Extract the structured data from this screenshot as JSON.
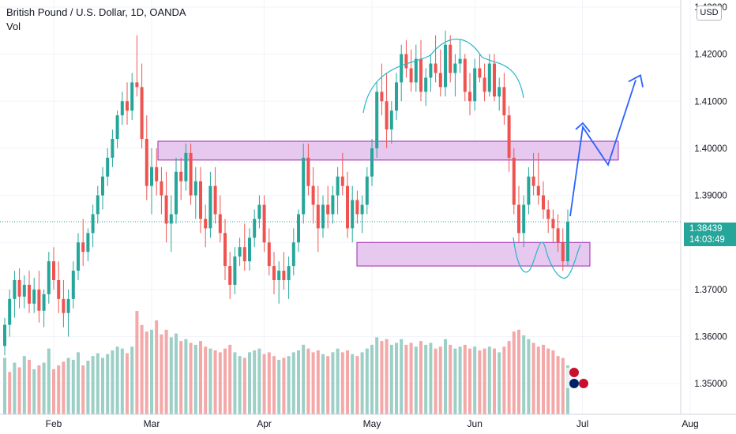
{
  "header": {
    "title": "British Pound / U.S. Dollar, 1D, OANDA",
    "volume_label": "Vol",
    "currency_button": "USD"
  },
  "price_tag": {
    "price": "1.38439",
    "countdown": "14:03:49"
  },
  "colors": {
    "up": "#26a69a",
    "down": "#ef5350",
    "vol_up": "#9ccfc6",
    "vol_down": "#f4a8a8",
    "zone_fill": "#e7c8ee",
    "zone_stroke": "#9c27b0",
    "pattern_line": "#29b6c8",
    "arrow": "#2962ff",
    "current_price_line": "#26a69a"
  },
  "chart_data": {
    "type": "candlestick",
    "title": "British Pound / U.S. Dollar, 1D, OANDA",
    "ylabel": "USD",
    "ylim": [
      1.3435,
      1.4315
    ],
    "y_ticks": [
      "1.35000",
      "1.36000",
      "1.37000",
      "1.38000",
      "1.39000",
      "1.40000",
      "1.41000",
      "1.42000",
      "1.43000"
    ],
    "x_ticks": [
      "Feb",
      "Mar",
      "Apr",
      "May",
      "Jun",
      "Jul",
      "Aug"
    ],
    "current_price": 1.38439,
    "start_date": "2021-01-18",
    "candles": [
      [
        1.358,
        1.364,
        1.356,
        1.3625
      ],
      [
        1.3625,
        1.37,
        1.36,
        1.368
      ],
      [
        1.368,
        1.374,
        1.364,
        1.372
      ],
      [
        1.372,
        1.3745,
        1.366,
        1.3685
      ],
      [
        1.3685,
        1.373,
        1.366,
        1.371
      ],
      [
        1.371,
        1.374,
        1.365,
        1.367
      ],
      [
        1.367,
        1.3725,
        1.365,
        1.37
      ],
      [
        1.37,
        1.374,
        1.363,
        1.3655
      ],
      [
        1.3655,
        1.37,
        1.362,
        1.369
      ],
      [
        1.369,
        1.378,
        1.367,
        1.376
      ],
      [
        1.376,
        1.379,
        1.37,
        1.372
      ],
      [
        1.372,
        1.376,
        1.365,
        1.368
      ],
      [
        1.368,
        1.372,
        1.362,
        1.365
      ],
      [
        1.365,
        1.37,
        1.36,
        1.368
      ],
      [
        1.368,
        1.376,
        1.366,
        1.374
      ],
      [
        1.374,
        1.382,
        1.372,
        1.38
      ],
      [
        1.38,
        1.385,
        1.375,
        1.378
      ],
      [
        1.378,
        1.383,
        1.376,
        1.382
      ],
      [
        1.382,
        1.388,
        1.379,
        1.386
      ],
      [
        1.386,
        1.392,
        1.384,
        1.39
      ],
      [
        1.39,
        1.396,
        1.387,
        1.394
      ],
      [
        1.394,
        1.4,
        1.392,
        1.398
      ],
      [
        1.398,
        1.404,
        1.396,
        1.402
      ],
      [
        1.402,
        1.408,
        1.4,
        1.407
      ],
      [
        1.407,
        1.412,
        1.405,
        1.41
      ],
      [
        1.41,
        1.414,
        1.405,
        1.408
      ],
      [
        1.408,
        1.416,
        1.406,
        1.414
      ],
      [
        1.414,
        1.424,
        1.411,
        1.413
      ],
      [
        1.413,
        1.418,
        1.4,
        1.402
      ],
      [
        1.402,
        1.407,
        1.389,
        1.392
      ],
      [
        1.392,
        1.4,
        1.386,
        1.396
      ],
      [
        1.396,
        1.4,
        1.39,
        1.393
      ],
      [
        1.393,
        1.396,
        1.386,
        1.39
      ],
      [
        1.39,
        1.395,
        1.38,
        1.384
      ],
      [
        1.384,
        1.39,
        1.378,
        1.386
      ],
      [
        1.386,
        1.398,
        1.384,
        1.395
      ],
      [
        1.395,
        1.398,
        1.389,
        1.393
      ],
      [
        1.393,
        1.401,
        1.391,
        1.399
      ],
      [
        1.399,
        1.401,
        1.388,
        1.39
      ],
      [
        1.39,
        1.396,
        1.385,
        1.393
      ],
      [
        1.393,
        1.396,
        1.382,
        1.385
      ],
      [
        1.385,
        1.388,
        1.379,
        1.383
      ],
      [
        1.383,
        1.395,
        1.381,
        1.392
      ],
      [
        1.392,
        1.396,
        1.384,
        1.386
      ],
      [
        1.386,
        1.39,
        1.38,
        1.382
      ],
      [
        1.382,
        1.385,
        1.372,
        1.375
      ],
      [
        1.375,
        1.378,
        1.368,
        1.371
      ],
      [
        1.371,
        1.379,
        1.369,
        1.377
      ],
      [
        1.377,
        1.381,
        1.375,
        1.379
      ],
      [
        1.379,
        1.384,
        1.374,
        1.376
      ],
      [
        1.376,
        1.383,
        1.374,
        1.381
      ],
      [
        1.381,
        1.387,
        1.379,
        1.385
      ],
      [
        1.385,
        1.39,
        1.383,
        1.388
      ],
      [
        1.388,
        1.39,
        1.378,
        1.38
      ],
      [
        1.38,
        1.383,
        1.373,
        1.375
      ],
      [
        1.375,
        1.378,
        1.369,
        1.372
      ],
      [
        1.372,
        1.376,
        1.367,
        1.374
      ],
      [
        1.374,
        1.378,
        1.37,
        1.372
      ],
      [
        1.372,
        1.377,
        1.368,
        1.375
      ],
      [
        1.375,
        1.383,
        1.373,
        1.38
      ],
      [
        1.38,
        1.387,
        1.378,
        1.386
      ],
      [
        1.386,
        1.401,
        1.384,
        1.398
      ],
      [
        1.398,
        1.401,
        1.39,
        1.392
      ],
      [
        1.392,
        1.396,
        1.384,
        1.388
      ],
      [
        1.388,
        1.392,
        1.378,
        1.383
      ],
      [
        1.383,
        1.39,
        1.381,
        1.388
      ],
      [
        1.388,
        1.392,
        1.383,
        1.386
      ],
      [
        1.386,
        1.392,
        1.384,
        1.39
      ],
      [
        1.39,
        1.396,
        1.386,
        1.394
      ],
      [
        1.394,
        1.399,
        1.39,
        1.392
      ],
      [
        1.392,
        1.395,
        1.381,
        1.383
      ],
      [
        1.383,
        1.392,
        1.38,
        1.389
      ],
      [
        1.389,
        1.391,
        1.384,
        1.386
      ],
      [
        1.386,
        1.39,
        1.382,
        1.388
      ],
      [
        1.388,
        1.396,
        1.386,
        1.394
      ],
      [
        1.394,
        1.402,
        1.392,
        1.4
      ],
      [
        1.4,
        1.414,
        1.398,
        1.412
      ],
      [
        1.412,
        1.418,
        1.407,
        1.41
      ],
      [
        1.41,
        1.416,
        1.4,
        1.404
      ],
      [
        1.404,
        1.41,
        1.401,
        1.408
      ],
      [
        1.408,
        1.416,
        1.406,
        1.414
      ],
      [
        1.414,
        1.422,
        1.41,
        1.42
      ],
      [
        1.42,
        1.423,
        1.415,
        1.417
      ],
      [
        1.417,
        1.421,
        1.412,
        1.414
      ],
      [
        1.414,
        1.422,
        1.412,
        1.419
      ],
      [
        1.419,
        1.423,
        1.41,
        1.412
      ],
      [
        1.412,
        1.417,
        1.409,
        1.415
      ],
      [
        1.415,
        1.42,
        1.412,
        1.418
      ],
      [
        1.418,
        1.424,
        1.414,
        1.416
      ],
      [
        1.416,
        1.421,
        1.411,
        1.413
      ],
      [
        1.413,
        1.425,
        1.411,
        1.422
      ],
      [
        1.422,
        1.424,
        1.414,
        1.416
      ],
      [
        1.416,
        1.42,
        1.411,
        1.418
      ],
      [
        1.418,
        1.423,
        1.416,
        1.419
      ],
      [
        1.419,
        1.42,
        1.41,
        1.412
      ],
      [
        1.412,
        1.416,
        1.407,
        1.41
      ],
      [
        1.41,
        1.419,
        1.408,
        1.417
      ],
      [
        1.417,
        1.42,
        1.414,
        1.415
      ],
      [
        1.415,
        1.418,
        1.41,
        1.412
      ],
      [
        1.412,
        1.42,
        1.411,
        1.418
      ],
      [
        1.418,
        1.42,
        1.41,
        1.411
      ],
      [
        1.411,
        1.415,
        1.408,
        1.413
      ],
      [
        1.413,
        1.416,
        1.405,
        1.407
      ],
      [
        1.407,
        1.409,
        1.395,
        1.398
      ],
      [
        1.398,
        1.4,
        1.386,
        1.388
      ],
      [
        1.388,
        1.392,
        1.38,
        1.382
      ],
      [
        1.382,
        1.39,
        1.379,
        1.388
      ],
      [
        1.388,
        1.396,
        1.386,
        1.394
      ],
      [
        1.394,
        1.399,
        1.39,
        1.392
      ],
      [
        1.392,
        1.399,
        1.388,
        1.39
      ],
      [
        1.39,
        1.393,
        1.385,
        1.387
      ],
      [
        1.387,
        1.389,
        1.382,
        1.385
      ],
      [
        1.385,
        1.387,
        1.38,
        1.383
      ],
      [
        1.383,
        1.386,
        1.378,
        1.38
      ],
      [
        1.38,
        1.383,
        1.374,
        1.376
      ],
      [
        1.376,
        1.387,
        1.375,
        1.3844
      ]
    ],
    "volume": [
      [
        0,
        60
      ],
      [
        1,
        45
      ],
      [
        0,
        55
      ],
      [
        1,
        50
      ],
      [
        0,
        62
      ],
      [
        1,
        58
      ],
      [
        0,
        48
      ],
      [
        1,
        52
      ],
      [
        0,
        55
      ],
      [
        0,
        70
      ],
      [
        1,
        48
      ],
      [
        1,
        52
      ],
      [
        1,
        56
      ],
      [
        0,
        60
      ],
      [
        0,
        58
      ],
      [
        0,
        66
      ],
      [
        1,
        52
      ],
      [
        0,
        57
      ],
      [
        0,
        62
      ],
      [
        0,
        65
      ],
      [
        0,
        60
      ],
      [
        0,
        64
      ],
      [
        0,
        68
      ],
      [
        0,
        72
      ],
      [
        0,
        70
      ],
      [
        1,
        65
      ],
      [
        0,
        72
      ],
      [
        1,
        110
      ],
      [
        1,
        95
      ],
      [
        1,
        88
      ],
      [
        0,
        90
      ],
      [
        1,
        100
      ],
      [
        1,
        85
      ],
      [
        1,
        90
      ],
      [
        0,
        82
      ],
      [
        0,
        86
      ],
      [
        1,
        78
      ],
      [
        0,
        80
      ],
      [
        1,
        76
      ],
      [
        0,
        74
      ],
      [
        1,
        78
      ],
      [
        1,
        72
      ],
      [
        0,
        70
      ],
      [
        1,
        68
      ],
      [
        1,
        66
      ],
      [
        1,
        70
      ],
      [
        1,
        74
      ],
      [
        0,
        66
      ],
      [
        0,
        62
      ],
      [
        1,
        60
      ],
      [
        0,
        66
      ],
      [
        0,
        68
      ],
      [
        0,
        70
      ],
      [
        1,
        64
      ],
      [
        1,
        66
      ],
      [
        1,
        62
      ],
      [
        0,
        58
      ],
      [
        1,
        60
      ],
      [
        0,
        62
      ],
      [
        0,
        66
      ],
      [
        0,
        68
      ],
      [
        0,
        74
      ],
      [
        1,
        70
      ],
      [
        1,
        66
      ],
      [
        1,
        68
      ],
      [
        0,
        64
      ],
      [
        1,
        62
      ],
      [
        0,
        66
      ],
      [
        0,
        70
      ],
      [
        1,
        66
      ],
      [
        1,
        68
      ],
      [
        0,
        64
      ],
      [
        1,
        62
      ],
      [
        0,
        66
      ],
      [
        0,
        70
      ],
      [
        0,
        74
      ],
      [
        0,
        82
      ],
      [
        1,
        78
      ],
      [
        1,
        80
      ],
      [
        0,
        74
      ],
      [
        0,
        76
      ],
      [
        0,
        80
      ],
      [
        1,
        74
      ],
      [
        1,
        76
      ],
      [
        0,
        72
      ],
      [
        1,
        78
      ],
      [
        0,
        74
      ],
      [
        0,
        76
      ],
      [
        1,
        70
      ],
      [
        1,
        72
      ],
      [
        0,
        80
      ],
      [
        1,
        74
      ],
      [
        0,
        70
      ],
      [
        0,
        72
      ],
      [
        1,
        74
      ],
      [
        1,
        70
      ],
      [
        0,
        72
      ],
      [
        1,
        68
      ],
      [
        1,
        70
      ],
      [
        0,
        72
      ],
      [
        1,
        70
      ],
      [
        0,
        66
      ],
      [
        1,
        72
      ],
      [
        1,
        78
      ],
      [
        1,
        88
      ],
      [
        1,
        90
      ],
      [
        0,
        84
      ],
      [
        0,
        80
      ],
      [
        1,
        76
      ],
      [
        1,
        72
      ],
      [
        1,
        74
      ],
      [
        1,
        70
      ],
      [
        1,
        68
      ],
      [
        1,
        62
      ],
      [
        1,
        60
      ],
      [
        0,
        52
      ]
    ],
    "annotations": {
      "resistance_zone": [
        1.3975,
        1.4015
      ],
      "support_zone": [
        1.375,
        1.38
      ],
      "projection": [
        1.3844,
        1.405,
        1.398,
        1.414
      ]
    }
  }
}
